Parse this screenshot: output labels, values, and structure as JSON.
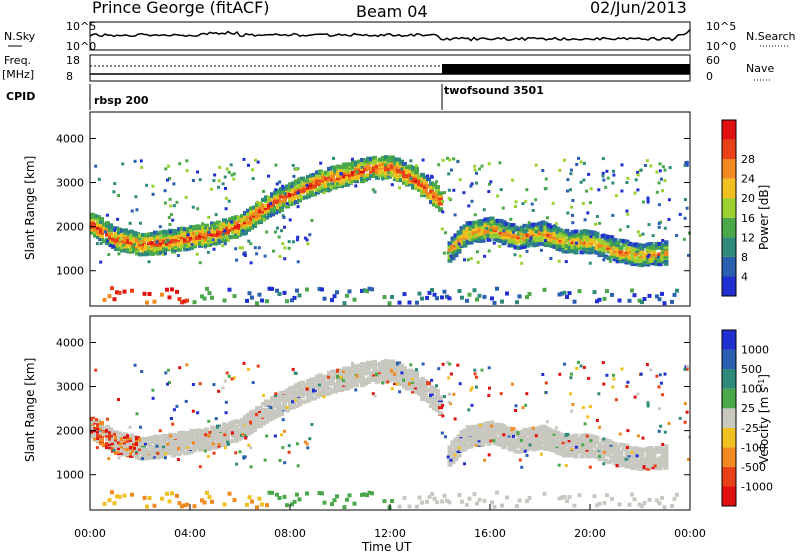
{
  "header": {
    "station": "Prince George (fitACF)",
    "beam": "Beam 04",
    "date": "02/Jun/2013"
  },
  "top_panel": {
    "left_label": "N.Sky",
    "right_label": "N.Search",
    "scale_top": "10^5",
    "scale_bottom": "10^0",
    "freq_label": "Freq.",
    "freq_unit": "[MHz]",
    "freq_top": "18",
    "freq_bottom": "8",
    "nave_label": "Nave",
    "nave_top": "60",
    "nave_bottom": "0",
    "cpid_label": "CPID",
    "cpid_segments": [
      {
        "label": "rbsp 200",
        "start_hour": 0
      },
      {
        "label": "twofsound 3501",
        "start_hour": 14
      }
    ]
  },
  "chart_data": [
    {
      "type": "heatmap",
      "title": "",
      "xlabel": "",
      "ylabel": "Slant Range [km]",
      "xlim": [
        0,
        24
      ],
      "ylim": [
        200,
        4600
      ],
      "yticks": [
        1000,
        2000,
        3000,
        4000
      ],
      "colorbar": {
        "label": "Power [dB]",
        "ticks": [
          "4",
          "8",
          "12",
          "16",
          "20",
          "24",
          "28"
        ],
        "colors": [
          "#1f2fd0",
          "#2a5fb0",
          "#2f8a7a",
          "#4aa84a",
          "#9ad030",
          "#f0c020",
          "#f08a20",
          "#e84018",
          "#e01010"
        ]
      },
      "bands": [
        {
          "name": "main-trace",
          "x": [
            0,
            1,
            2,
            3,
            4,
            5,
            6,
            7,
            8,
            9,
            10,
            11,
            12,
            13,
            14
          ],
          "y": [
            2100,
            1750,
            1650,
            1700,
            1800,
            1900,
            2100,
            2500,
            2800,
            3050,
            3200,
            3350,
            3400,
            3100,
            2600
          ],
          "level": 18
        },
        {
          "name": "far-trace",
          "x": [
            14.3,
            15,
            16,
            17,
            18,
            19,
            20,
            21,
            22,
            23
          ],
          "y": [
            1500,
            1900,
            2000,
            1800,
            1900,
            1700,
            1700,
            1500,
            1400,
            1450
          ],
          "level": 14
        }
      ]
    },
    {
      "type": "heatmap",
      "title": "",
      "xlabel": "Time UT",
      "ylabel": "Slant Range [km]",
      "xlim": [
        0,
        24
      ],
      "ylim": [
        200,
        4600
      ],
      "xticks": [
        "00:00",
        "04:00",
        "08:00",
        "12:00",
        "16:00",
        "20:00",
        "00:00"
      ],
      "yticks": [
        1000,
        2000,
        3000,
        4000
      ],
      "colorbar": {
        "label": "Velocity [m s^-1]",
        "ticks": [
          "1000",
          "500",
          "100",
          "25",
          "-25",
          "-100",
          "-500",
          "-1000"
        ],
        "colors": [
          "#1f2fd0",
          "#2a5fb0",
          "#2f8a7a",
          "#4aa84a",
          "#c8c8c0",
          "#f0c020",
          "#f08a20",
          "#e84018",
          "#e01010"
        ]
      }
    }
  ]
}
